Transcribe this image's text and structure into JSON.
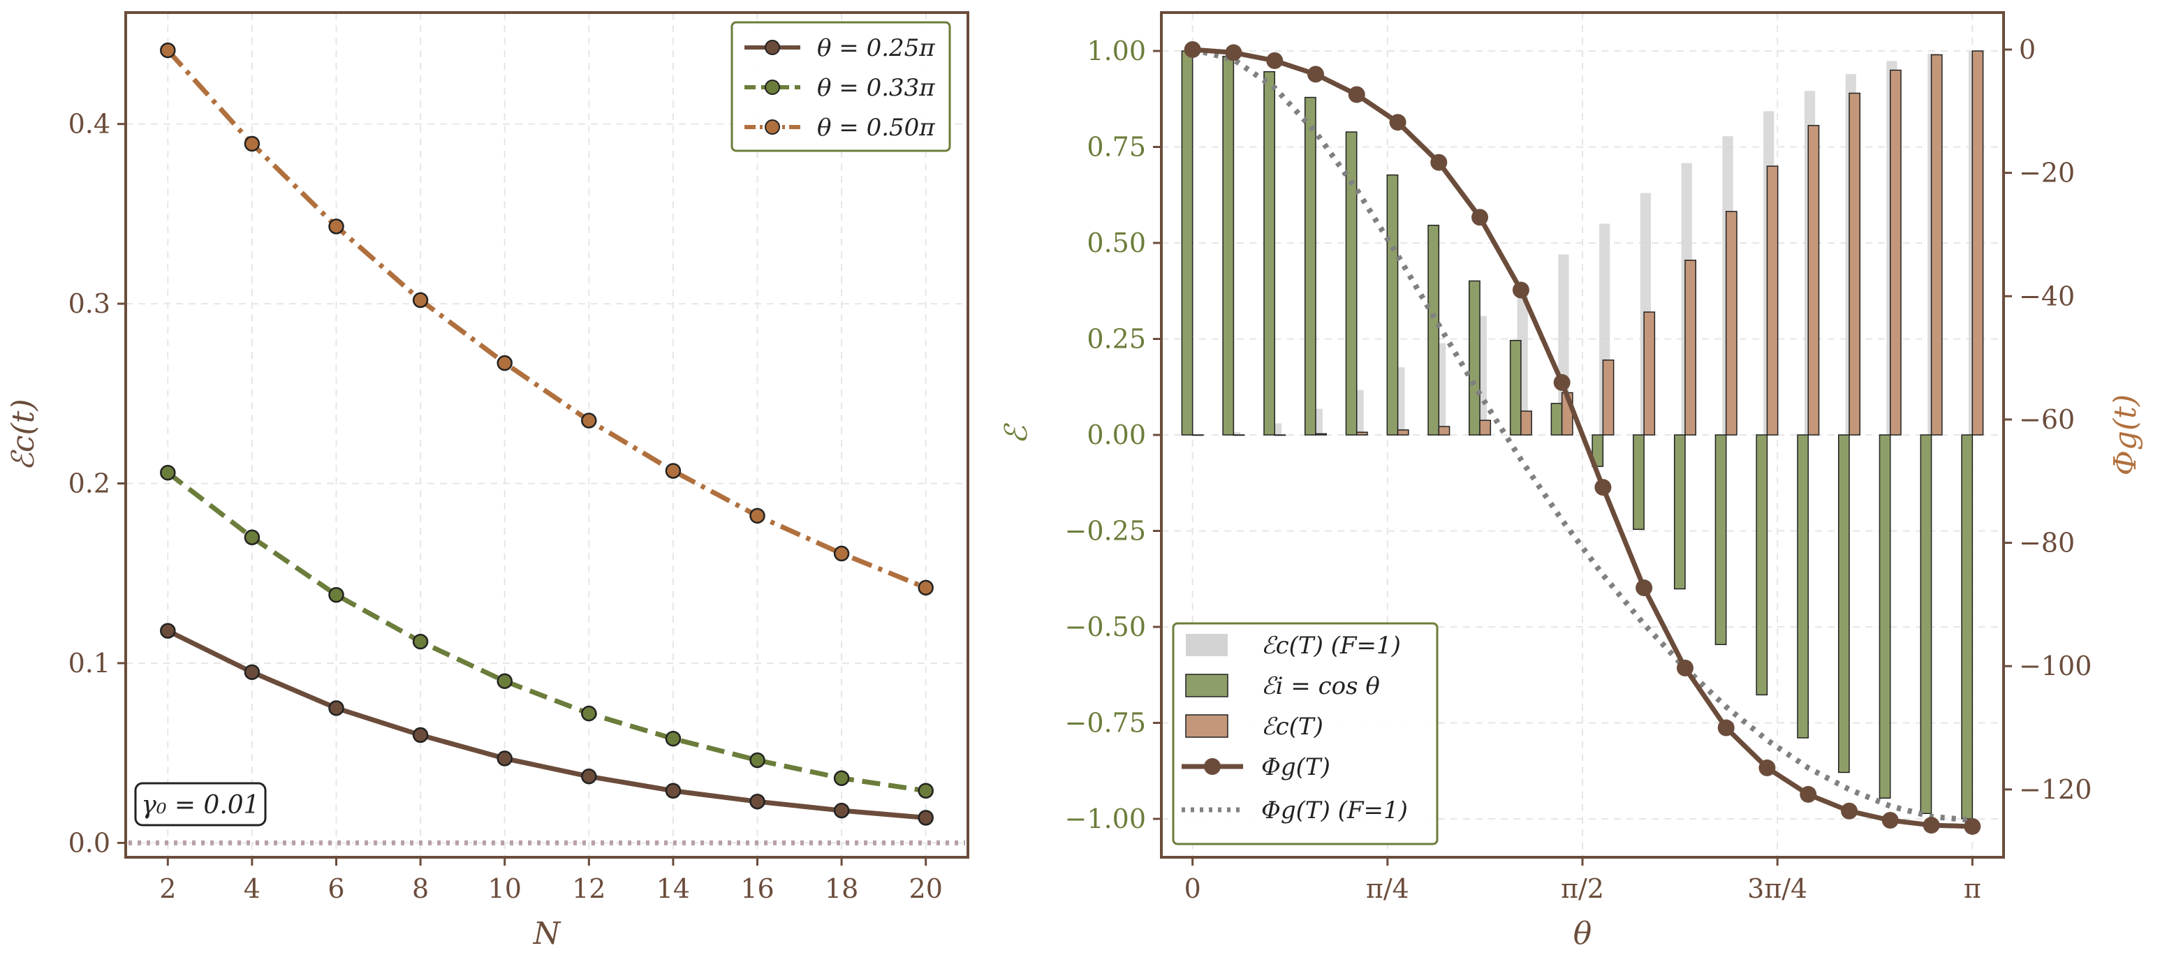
{
  "colors": {
    "brown": "#6b4c3b",
    "olive": "#6b7d3a",
    "copper": "#b0703e",
    "olive_bar": "#8e9e68",
    "copper_bar": "#c4977a",
    "gray_bar": "#d3d3d3",
    "gray_dotted": "#808080",
    "zero_dotted": "#b8a0a8",
    "frame": "#6b4c3b"
  },
  "chart_data": [
    {
      "type": "line",
      "xlabel": "N",
      "ylabel": "ℰc(t)",
      "xlim": [
        1,
        21
      ],
      "ylim": [
        -0.008,
        0.462
      ],
      "x": [
        2,
        4,
        6,
        8,
        10,
        12,
        14,
        16,
        18,
        20
      ],
      "x_ticks": [
        "2",
        "4",
        "6",
        "8",
        "10",
        "12",
        "14",
        "16",
        "18",
        "20"
      ],
      "y_ticks": [
        "0.0",
        "0.1",
        "0.2",
        "0.3",
        "0.4"
      ],
      "y_tick_values": [
        0.0,
        0.1,
        0.2,
        0.3,
        0.4
      ],
      "grid": true,
      "legend_position": "top-right",
      "annotation": "γ₀ = 0.01",
      "series": [
        {
          "name": "θ = 0.25π",
          "style": "solid",
          "color_key": "brown",
          "values": [
            0.118,
            0.095,
            0.075,
            0.06,
            0.047,
            0.037,
            0.029,
            0.023,
            0.018,
            0.014
          ]
        },
        {
          "name": "θ = 0.33π",
          "style": "dashed",
          "color_key": "olive",
          "values": [
            0.206,
            0.17,
            0.138,
            0.112,
            0.09,
            0.072,
            0.058,
            0.046,
            0.036,
            0.029
          ]
        },
        {
          "name": "θ = 0.50π",
          "style": "dashdot",
          "color_key": "copper",
          "values": [
            0.441,
            0.389,
            0.343,
            0.302,
            0.267,
            0.235,
            0.207,
            0.182,
            0.161,
            0.142
          ]
        }
      ],
      "reference_line": {
        "y": 0.0,
        "style": "dotted"
      }
    },
    {
      "type": "bar",
      "xlabel": "θ",
      "ylabel": "ℰ",
      "y2label": "Φg(t)",
      "xlim": [
        -0.04,
        1.04
      ],
      "ylim": [
        -1.1,
        1.1
      ],
      "y2lim": [
        -131,
        6
      ],
      "x_tick_values": [
        0,
        0.25,
        0.5,
        0.75,
        1.0
      ],
      "x_ticks": [
        "0",
        "π/4",
        "π/2",
        "3π/4",
        "π"
      ],
      "y_ticks": [
        "1.00",
        "0.75",
        "0.50",
        "0.25",
        "0.00",
        "−0.25",
        "−0.50",
        "−0.75",
        "−1.00"
      ],
      "y_tick_values": [
        1.0,
        0.75,
        0.5,
        0.25,
        0.0,
        -0.25,
        -0.5,
        -0.75,
        -1.0
      ],
      "y2_ticks": [
        "0",
        "−20",
        "−40",
        "−60",
        "−80",
        "−100",
        "−120"
      ],
      "y2_tick_values": [
        0,
        -20,
        -40,
        -60,
        -80,
        -100,
        -120
      ],
      "grid": true,
      "legend_position": "bottom-left",
      "x": [
        0.0,
        0.0526,
        0.1053,
        0.1579,
        0.2105,
        0.2632,
        0.3158,
        0.3684,
        0.4211,
        0.4737,
        0.5263,
        0.5789,
        0.6316,
        0.6842,
        0.7368,
        0.7895,
        0.8421,
        0.8947,
        0.9474,
        1.0
      ],
      "series": [
        {
          "name": "ℰc(T) (F=1)",
          "kind": "bar",
          "color_key": "gray_bar",
          "values": [
            0.0,
            0.007,
            0.03,
            0.068,
            0.117,
            0.176,
            0.239,
            0.31,
            0.389,
            0.47,
            0.55,
            0.63,
            0.708,
            0.778,
            0.843,
            0.896,
            0.94,
            0.974,
            0.993,
            1.0
          ]
        },
        {
          "name": "ℰi = cos θ",
          "kind": "bar",
          "color_key": "olive_bar",
          "values": [
            1.0,
            0.986,
            0.946,
            0.879,
            0.789,
            0.677,
            0.546,
            0.401,
            0.246,
            0.082,
            -0.082,
            -0.246,
            -0.401,
            -0.546,
            -0.677,
            -0.789,
            -0.879,
            -0.946,
            -0.986,
            -1.0
          ]
        },
        {
          "name": "ℰc(T)",
          "kind": "bar",
          "color_key": "copper_bar",
          "values": [
            0.0,
            0.0,
            0.0,
            0.003,
            0.007,
            0.013,
            0.022,
            0.038,
            0.062,
            0.11,
            0.195,
            0.32,
            0.455,
            0.582,
            0.7,
            0.806,
            0.89,
            0.95,
            0.99,
            1.0
          ]
        },
        {
          "name": "Φg(T)",
          "kind": "line",
          "axis": "right",
          "style": "solid-markers",
          "color_key": "brown",
          "values": [
            0.0,
            -0.5,
            -1.8,
            -4.0,
            -7.3,
            -11.8,
            -18.3,
            -27.2,
            -39.0,
            -54.0,
            -71.0,
            -87.3,
            -100.3,
            -110.0,
            -116.5,
            -120.8,
            -123.5,
            -125.0,
            -125.8,
            -126.0
          ]
        },
        {
          "name": "Φg(T) (F=1)",
          "kind": "line",
          "axis": "right",
          "style": "dotted",
          "color_key": "gray_dotted",
          "values": [
            0.0,
            -1.6,
            -6.2,
            -13.4,
            -22.7,
            -33.4,
            -44.7,
            -55.9,
            -66.5,
            -76.3,
            -85.2,
            -93.2,
            -100.3,
            -106.6,
            -112.0,
            -116.5,
            -120.0,
            -122.7,
            -124.4,
            -125.0
          ]
        }
      ]
    }
  ]
}
